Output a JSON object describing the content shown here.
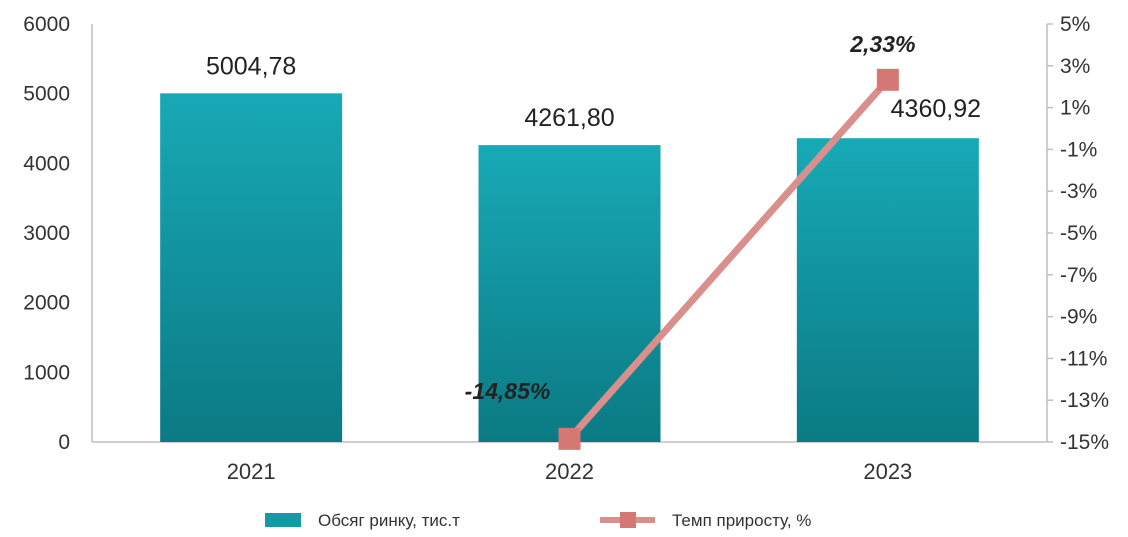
{
  "chart_data": {
    "type": "bar",
    "categories": [
      "2021",
      "2022",
      "2023"
    ],
    "series": [
      {
        "name": "Обсяг ринку, тис.т",
        "kind": "bar",
        "axis": "left",
        "values": [
          5004.78,
          4261.8,
          4360.92
        ],
        "labels": [
          "5004,78",
          "4261,80",
          "4360,92"
        ],
        "color": "#16a0ac"
      },
      {
        "name": "Темп приросту, %",
        "kind": "line",
        "axis": "right",
        "values": [
          null,
          -14.85,
          2.33
        ],
        "labels": [
          "",
          "-14,85%",
          "2,33%"
        ],
        "color": "#d9908c"
      }
    ],
    "y_left": {
      "lim": [
        0,
        6000
      ],
      "ticks": [
        "0",
        "1000",
        "2000",
        "3000",
        "4000",
        "5000",
        "6000"
      ]
    },
    "y_right": {
      "lim": [
        -15,
        5
      ],
      "ticks": [
        "-15%",
        "-13%",
        "-11%",
        "-9%",
        "-7%",
        "-5%",
        "-3%",
        "-1%",
        "1%",
        "3%",
        "5%"
      ]
    },
    "grid": false,
    "legend": "bottom"
  }
}
